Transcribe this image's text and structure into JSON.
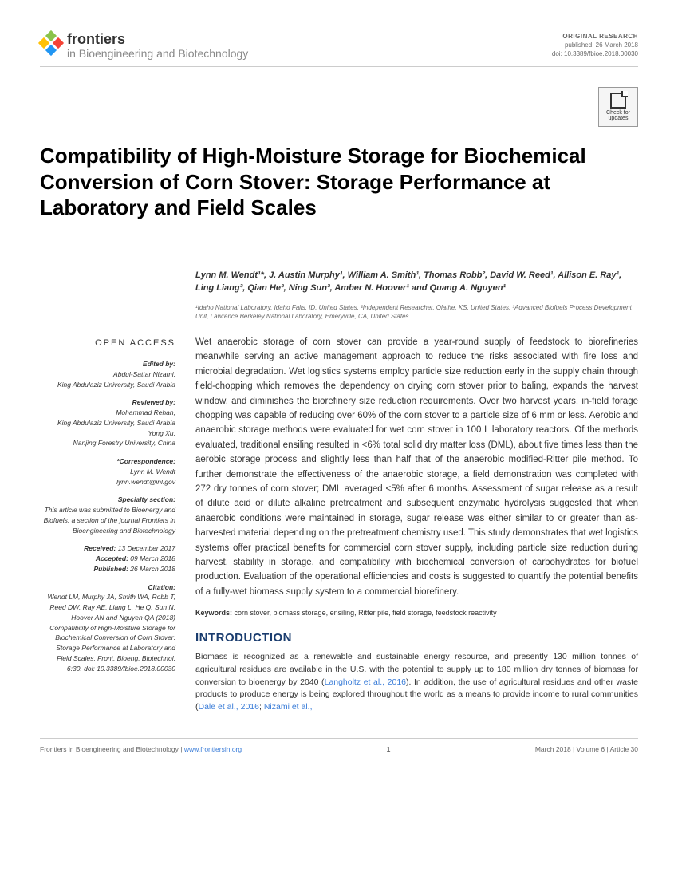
{
  "header": {
    "brand": "frontiers",
    "journal": "in Bioengineering and Biotechnology",
    "pubType": "ORIGINAL RESEARCH",
    "pubDate": "published: 26 March 2018",
    "doi": "doi: 10.3389/fbioe.2018.00030",
    "checkUpdates": "Check for updates"
  },
  "title": "Compatibility of High-Moisture Storage for Biochemical Conversion of Corn Stover: Storage Performance at Laboratory and Field Scales",
  "authors": "Lynn M. Wendt¹*, J. Austin Murphy¹, William A. Smith¹, Thomas Robb², David W. Reed¹, Allison E. Ray¹, Ling Liang³, Qian He³, Ning Sun³, Amber N. Hoover¹ and Quang A. Nguyen¹",
  "affiliations": "¹Idaho National Laboratory, Idaho Falls, ID, United States, ²Independent Researcher, Olathe, KS, United States, ³Advanced Biofuels Process Development Unit, Lawrence Berkeley National Laboratory, Emeryville, CA, United States",
  "sidebar": {
    "openAccess": "OPEN ACCESS",
    "edited": {
      "label": "Edited by:",
      "name": "Abdul-Sattar Nizami,",
      "aff": "King Abdulaziz University, Saudi Arabia"
    },
    "reviewed": {
      "label": "Reviewed by:",
      "r1n": "Mohammad Rehan,",
      "r1a": "King Abdulaziz University, Saudi Arabia",
      "r2n": "Yong Xu,",
      "r2a": "Nanjing Forestry University, China"
    },
    "corr": {
      "label": "*Correspondence:",
      "name": "Lynn M. Wendt",
      "email": "lynn.wendt@inl.gov"
    },
    "specialty": {
      "label": "Specialty section:",
      "text": "This article was submitted to Bioenergy and Biofuels, a section of the journal Frontiers in Bioengineering and Biotechnology"
    },
    "received": {
      "label": "Received:",
      "date": " 13 December 2017"
    },
    "accepted": {
      "label": "Accepted:",
      "date": " 09 March 2018"
    },
    "published": {
      "label": "Published:",
      "date": " 26 March 2018"
    },
    "citation": {
      "label": "Citation:",
      "text": "Wendt LM, Murphy JA, Smith WA, Robb T, Reed DW, Ray AE, Liang L, He Q, Sun N, Hoover AN and Nguyen QA (2018) Compatibility of High-Moisture Storage for Biochemical Conversion of Corn Stover: Storage Performance at Laboratory and Field Scales. Front. Bioeng. Biotechnol. 6:30. doi: 10.3389/fbioe.2018.00030"
    }
  },
  "abstract": "Wet anaerobic storage of corn stover can provide a year-round supply of feedstock to biorefineries meanwhile serving an active management approach to reduce the risks associated with fire loss and microbial degradation. Wet logistics systems employ particle size reduction early in the supply chain through field-chopping which removes the dependency on drying corn stover prior to baling, expands the harvest window, and diminishes the biorefinery size reduction requirements. Over two harvest years, in-field forage chopping was capable of reducing over 60% of the corn stover to a particle size of 6 mm or less. Aerobic and anaerobic storage methods were evaluated for wet corn stover in 100 L laboratory reactors. Of the methods evaluated, traditional ensiling resulted in <6% total solid dry matter loss (DML), about five times less than the aerobic storage process and slightly less than half that of the anaerobic modified-Ritter pile method. To further demonstrate the effectiveness of the anaerobic storage, a field demonstration was completed with 272 dry tonnes of corn stover; DML averaged <5% after 6 months. Assessment of sugar release as a result of dilute acid or dilute alkaline pretreatment and subsequent enzymatic hydrolysis suggested that when anaerobic conditions were maintained in storage, sugar release was either similar to or greater than as-harvested material depending on the pretreatment chemistry used. This study demonstrates that wet logistics systems offer practical benefits for commercial corn stover supply, including particle size reduction during harvest, stability in storage, and compatibility with biochemical conversion of carbohydrates for biofuel production. Evaluation of the operational efficiencies and costs is suggested to quantify the potential benefits of a fully-wet biomass supply system to a commercial biorefinery.",
  "keywordsLabel": "Keywords: ",
  "keywords": "corn stover, biomass storage, ensiling, Ritter pile, field storage, feedstock reactivity",
  "introHeading": "INTRODUCTION",
  "introBody": {
    "p1": "Biomass is recognized as a renewable and sustainable energy resource, and presently 130 million tonnes of agricultural residues are available in the U.S. with the potential to supply up to 180 million dry tonnes of biomass for conversion to bioenergy by 2040 (",
    "c1": "Langholtz et al., 2016",
    "p2": "). In addition, the use of agricultural residues and other waste products to produce energy is being explored throughout the world as a means to provide income to rural communities (",
    "c2": "Dale et al., 2016",
    "p3": "; ",
    "c3": "Nizami et al.,"
  },
  "footer": {
    "left": "Frontiers in Bioengineering and Biotechnology",
    "url": "www.frontiersin.org",
    "page": "1",
    "right": "March 2018 | Volume 6 | Article 30"
  }
}
